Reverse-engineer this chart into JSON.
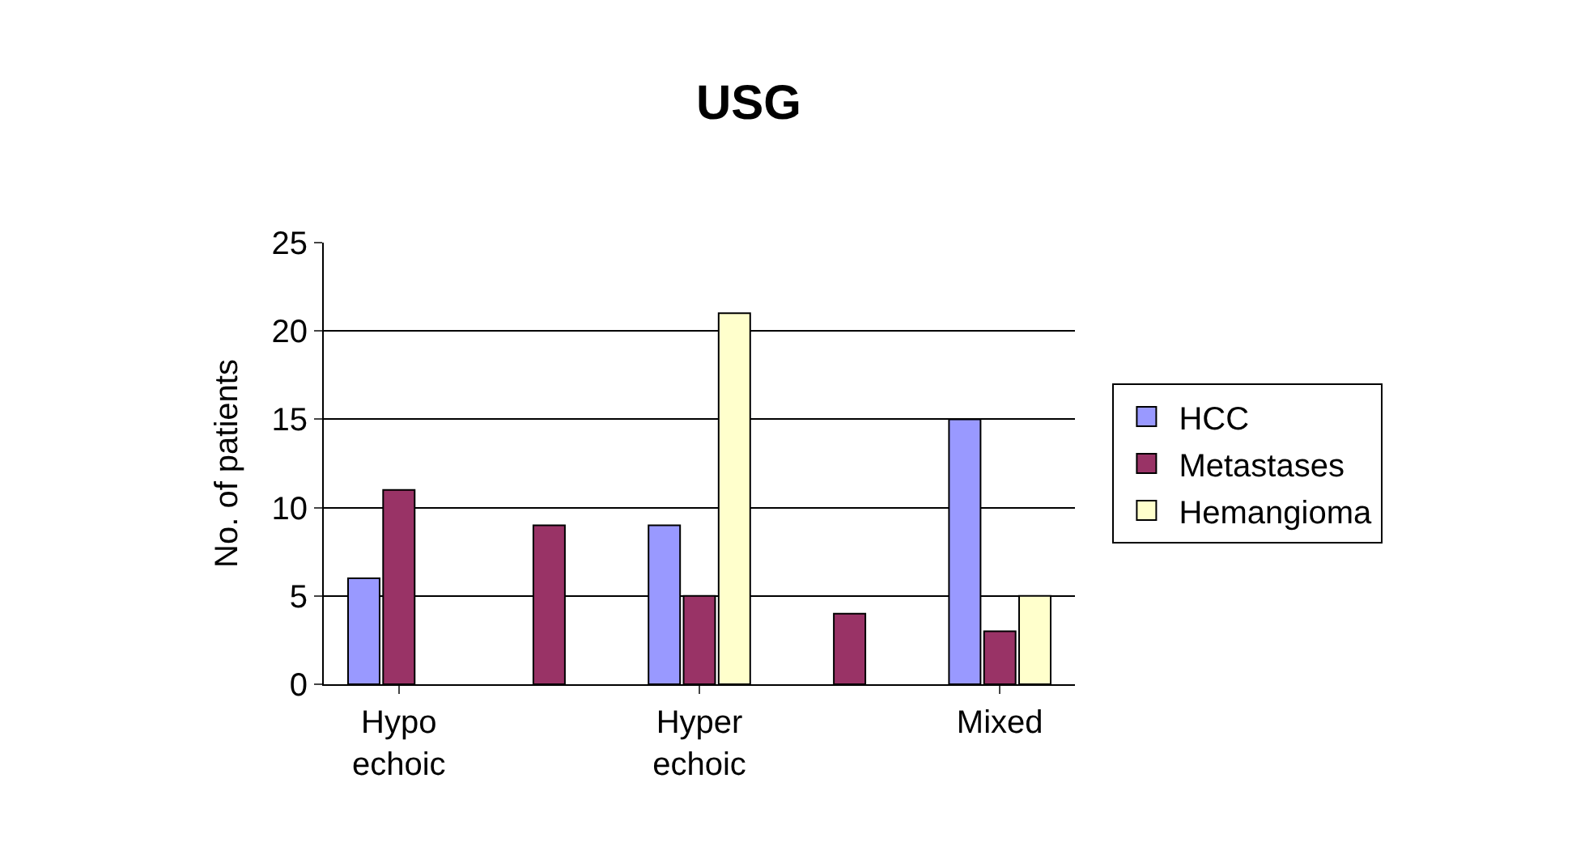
{
  "chart_data": {
    "type": "bar",
    "title": "USG",
    "ylabel": "No. of patients",
    "categories": [
      "Hypo echoic",
      null,
      "Hyper echoic",
      null,
      "Mixed"
    ],
    "series": [
      {
        "name": "HCC",
        "color": "#9999ff",
        "values": [
          6,
          null,
          9,
          null,
          15
        ]
      },
      {
        "name": "Metastases",
        "color": "#993366",
        "values": [
          11,
          9,
          5,
          4,
          3
        ]
      },
      {
        "name": "Hemangioma",
        "color": "#ffffcc",
        "values": [
          null,
          null,
          21,
          null,
          5
        ]
      }
    ],
    "ylim": [
      0,
      25
    ],
    "yticks": [
      0,
      5,
      10,
      15,
      20,
      25
    ],
    "grid": "y",
    "legend": "right"
  }
}
